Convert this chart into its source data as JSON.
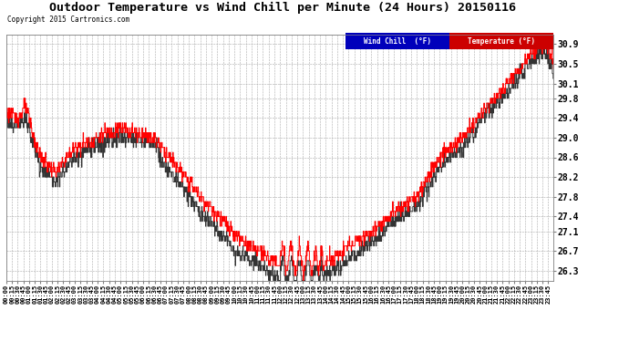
{
  "title": "Outdoor Temperature vs Wind Chill per Minute (24 Hours) 20150116",
  "copyright": "Copyright 2015 Cartronics.com",
  "xlim": [
    0,
    1439
  ],
  "ylim": [
    26.1,
    31.1
  ],
  "yticks": [
    26.3,
    26.7,
    27.1,
    27.4,
    27.8,
    28.2,
    28.6,
    29.0,
    29.4,
    29.8,
    30.1,
    30.5,
    30.9
  ],
  "bg_color": "#ffffff",
  "grid_color": "#aaaaaa",
  "temp_color": "#ff0000",
  "wind_color": "#1a1aaa",
  "legend_wind_bg": "#0000cc",
  "legend_temp_bg": "#cc0000",
  "fig_bg": "#ffffff",
  "title_fontsize": 10,
  "copyright_fontsize": 6
}
